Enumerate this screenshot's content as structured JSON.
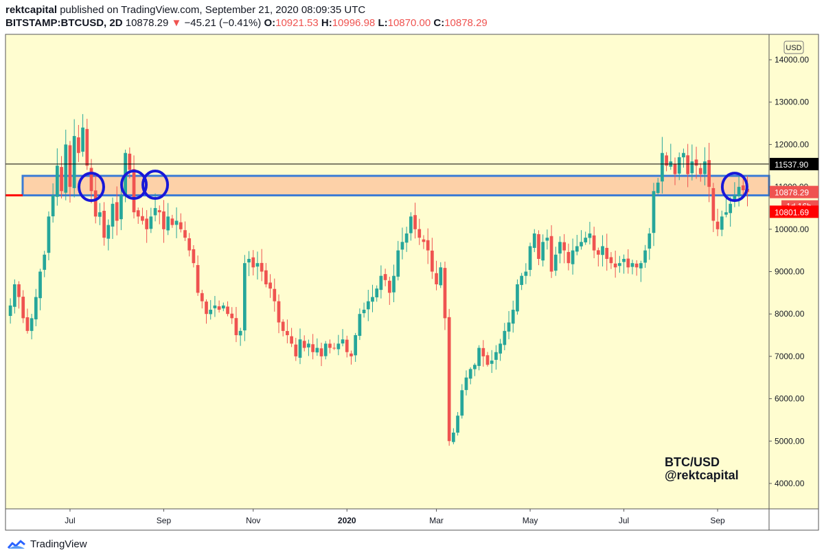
{
  "header": {
    "author": "rektcapital",
    "published_text": "published on TradingView.com, September 21, 2020 08:09:35 UTC",
    "symbol": "BITSTAMP:BTCUSD, 2D",
    "last": "10878.29",
    "change_arrow": "▼",
    "change": "−45.21 (−0.41%)",
    "o_label": "O:",
    "o_value": "10921.53",
    "h_label": "H:",
    "h_value": "10996.98",
    "l_label": "L:",
    "l_value": "10870.00",
    "c_label": "C:",
    "c_value": "10878.29"
  },
  "footer": {
    "brand": "TradingView"
  },
  "colors": {
    "background": "#fffdd0",
    "up": "#26a69a",
    "down": "#ef5350",
    "zone_fill": "#fdd1a8",
    "zone_border": "#3a7bd5",
    "circle": "#1818d8",
    "black_line": "#000000",
    "red_line": "#ff0000"
  },
  "chart_data": {
    "type": "candlestick",
    "currency_label": "USD",
    "ylim": [
      3400,
      14600
    ],
    "y_ticks": [
      {
        "value": 14000,
        "label": "14000.00"
      },
      {
        "value": 13000,
        "label": "13000.00"
      },
      {
        "value": 12000,
        "label": "12000.00"
      },
      {
        "value": 11000,
        "label": "11000.00"
      },
      {
        "value": 10000,
        "label": "10000.00"
      },
      {
        "value": 9000,
        "label": "9000.00"
      },
      {
        "value": 8000,
        "label": "8000.00"
      },
      {
        "value": 7000,
        "label": "7000.00"
      },
      {
        "value": 6000,
        "label": "6000.00"
      },
      {
        "value": 5000,
        "label": "5000.00"
      },
      {
        "value": 4000,
        "label": "4000.00"
      }
    ],
    "x_ticks": [
      {
        "label": "Jul",
        "index": 14,
        "bold": false
      },
      {
        "label": "Sep",
        "index": 36,
        "bold": false
      },
      {
        "label": "Nov",
        "index": 57,
        "bold": false
      },
      {
        "label": "2020",
        "index": 79,
        "bold": true
      },
      {
        "label": "Mar",
        "index": 100,
        "bold": false
      },
      {
        "label": "May",
        "index": 122,
        "bold": false
      },
      {
        "label": "Jul",
        "index": 144,
        "bold": false
      },
      {
        "label": "Sep",
        "index": 166,
        "bold": false
      }
    ],
    "candle_count": 176,
    "close_path": [
      [
        0,
        8200
      ],
      [
        1,
        8700
      ],
      [
        2,
        8400
      ],
      [
        3,
        7900
      ],
      [
        4,
        7600
      ],
      [
        5,
        7900
      ],
      [
        6,
        8400
      ],
      [
        7,
        9000
      ],
      [
        8,
        9400
      ],
      [
        9,
        10300
      ],
      [
        10,
        10800
      ],
      [
        11,
        11500
      ],
      [
        12,
        10900
      ],
      [
        13,
        12000
      ],
      [
        14,
        11000
      ],
      [
        15,
        12200
      ],
      [
        16,
        11800
      ],
      [
        17,
        12400
      ],
      [
        18,
        11500
      ],
      [
        19,
        10900
      ],
      [
        20,
        10300
      ],
      [
        21,
        10400
      ],
      [
        22,
        9800
      ],
      [
        23,
        10100
      ],
      [
        24,
        10600
      ],
      [
        25,
        10200
      ],
      [
        26,
        10800
      ],
      [
        27,
        11800
      ],
      [
        28,
        11400
      ],
      [
        29,
        10400
      ],
      [
        30,
        10300
      ],
      [
        31,
        10200
      ],
      [
        32,
        10000
      ],
      [
        33,
        10300
      ],
      [
        34,
        10500
      ],
      [
        35,
        10400
      ],
      [
        36,
        10000
      ],
      [
        37,
        10300
      ],
      [
        38,
        10100
      ],
      [
        39,
        10200
      ],
      [
        40,
        10000
      ],
      [
        41,
        9800
      ],
      [
        42,
        9500
      ],
      [
        43,
        9200
      ],
      [
        44,
        8500
      ],
      [
        45,
        8300
      ],
      [
        46,
        8000
      ],
      [
        47,
        8100
      ],
      [
        48,
        8200
      ],
      [
        49,
        8100
      ],
      [
        50,
        8200
      ],
      [
        51,
        8000
      ],
      [
        52,
        7900
      ],
      [
        53,
        7500
      ],
      [
        54,
        7600
      ],
      [
        55,
        9200
      ],
      [
        56,
        9300
      ],
      [
        57,
        9100
      ],
      [
        58,
        9200
      ],
      [
        59,
        9000
      ],
      [
        60,
        8700
      ],
      [
        61,
        8600
      ],
      [
        62,
        8300
      ],
      [
        63,
        7800
      ],
      [
        64,
        7600
      ],
      [
        65,
        7500
      ],
      [
        66,
        7300
      ],
      [
        67,
        7000
      ],
      [
        68,
        7400
      ],
      [
        69,
        7200
      ],
      [
        70,
        7300
      ],
      [
        71,
        7100
      ],
      [
        72,
        7200
      ],
      [
        73,
        7000
      ],
      [
        74,
        7300
      ],
      [
        75,
        7200
      ],
      [
        76,
        7200
      ],
      [
        77,
        7300
      ],
      [
        78,
        7400
      ],
      [
        79,
        7100
      ],
      [
        80,
        7000
      ],
      [
        81,
        7500
      ],
      [
        82,
        8000
      ],
      [
        83,
        8100
      ],
      [
        84,
        8300
      ],
      [
        85,
        8400
      ],
      [
        86,
        8600
      ],
      [
        87,
        8900
      ],
      [
        88,
        8800
      ],
      [
        89,
        8500
      ],
      [
        90,
        8900
      ],
      [
        91,
        9500
      ],
      [
        92,
        9700
      ],
      [
        93,
        9900
      ],
      [
        94,
        10300
      ],
      [
        95,
        10000
      ],
      [
        96,
        9800
      ],
      [
        97,
        9700
      ],
      [
        98,
        9500
      ],
      [
        99,
        9000
      ],
      [
        100,
        8700
      ],
      [
        101,
        9100
      ],
      [
        102,
        7900
      ],
      [
        103,
        5000
      ],
      [
        104,
        5200
      ],
      [
        105,
        5600
      ],
      [
        106,
        6200
      ],
      [
        107,
        6500
      ],
      [
        108,
        6700
      ],
      [
        109,
        6800
      ],
      [
        110,
        7200
      ],
      [
        111,
        7000
      ],
      [
        112,
        6800
      ],
      [
        113,
        6900
      ],
      [
        114,
        7100
      ],
      [
        115,
        7300
      ],
      [
        116,
        7600
      ],
      [
        117,
        7800
      ],
      [
        118,
        8100
      ],
      [
        119,
        8700
      ],
      [
        120,
        8900
      ],
      [
        121,
        9000
      ],
      [
        122,
        9600
      ],
      [
        123,
        9900
      ],
      [
        124,
        9300
      ],
      [
        125,
        9700
      ],
      [
        126,
        9800
      ],
      [
        127,
        9000
      ],
      [
        128,
        9400
      ],
      [
        129,
        9700
      ],
      [
        130,
        9500
      ],
      [
        131,
        9200
      ],
      [
        132,
        9500
      ],
      [
        133,
        9600
      ],
      [
        134,
        9700
      ],
      [
        135,
        9800
      ],
      [
        136,
        9900
      ],
      [
        137,
        9500
      ],
      [
        138,
        9400
      ],
      [
        139,
        9600
      ],
      [
        140,
        9300
      ],
      [
        141,
        9200
      ],
      [
        142,
        9100
      ],
      [
        143,
        9200
      ],
      [
        144,
        9300
      ],
      [
        145,
        9100
      ],
      [
        146,
        9200
      ],
      [
        147,
        9100
      ],
      [
        148,
        9200
      ],
      [
        149,
        9500
      ],
      [
        150,
        9900
      ],
      [
        151,
        10900
      ],
      [
        152,
        11100
      ],
      [
        153,
        11800
      ],
      [
        154,
        11500
      ],
      [
        155,
        11600
      ],
      [
        156,
        11300
      ],
      [
        157,
        11700
      ],
      [
        158,
        11800
      ],
      [
        159,
        11300
      ],
      [
        160,
        11600
      ],
      [
        161,
        11500
      ],
      [
        162,
        11300
      ],
      [
        163,
        11600
      ],
      [
        164,
        11000
      ],
      [
        165,
        10200
      ],
      [
        166,
        10000
      ],
      [
        167,
        10300
      ],
      [
        168,
        10400
      ],
      [
        169,
        10600
      ],
      [
        170,
        10800
      ],
      [
        171,
        11000
      ],
      [
        172,
        10921
      ],
      [
        173,
        10878
      ]
    ],
    "resistance_zone": {
      "top": 11260,
      "bottom": 10800
    },
    "horizontal_lines": [
      {
        "value": 11537.9,
        "label": "11537.90",
        "color": "black"
      },
      {
        "value": 10801.69,
        "label": "10801.69",
        "color": "red"
      }
    ],
    "price_labels": [
      {
        "value": 10878.29,
        "label": "10878.29",
        "countdown": "1d 16h"
      }
    ],
    "highlight_circles": [
      {
        "index": 19,
        "value": 11000
      },
      {
        "index": 29,
        "value": 11050
      },
      {
        "index": 34,
        "value": 11050
      },
      {
        "index": 170,
        "value": 11000
      }
    ],
    "annotation": {
      "line1": "BTC/USD",
      "line2": "@rektcapital",
      "position": "bottom-right"
    }
  }
}
